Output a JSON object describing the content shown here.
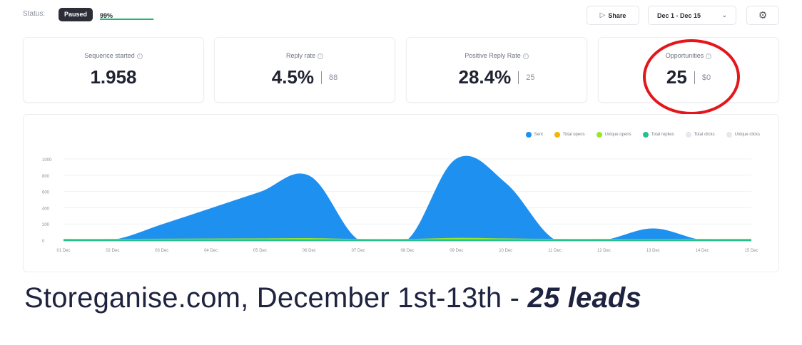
{
  "header": {
    "status_label": "Status:",
    "status_badge": "Paused",
    "progress_text": "99%",
    "progress_value": 0.99,
    "share_label": "Share",
    "date_range": "Dec 1 - Dec 15",
    "accent": "#22b573"
  },
  "metrics": [
    {
      "title": "Sequence started",
      "value": "1.958",
      "sub": ""
    },
    {
      "title": "Reply rate",
      "value": "4.5%",
      "sub": "88"
    },
    {
      "title": "Positive Reply Rate",
      "value": "28.4%",
      "sub": "25"
    },
    {
      "title": "Opportunities",
      "value": "25",
      "sub": "$0"
    }
  ],
  "legend": [
    {
      "name": "Sent",
      "color": "#1e90f0"
    },
    {
      "name": "Total opens",
      "color": "#f5b400"
    },
    {
      "name": "Unique opens",
      "color": "#9ae62e"
    },
    {
      "name": "Total replies",
      "color": "#22c28a"
    },
    {
      "name": "Total clicks",
      "color": "#e6e8ec"
    },
    {
      "name": "Unique clicks",
      "color": "#e6e8ec"
    }
  ],
  "caption": {
    "text": "Storeganise.com, December 1st-13th - ",
    "bold": "25 leads"
  },
  "chart_data": {
    "type": "area",
    "x": [
      "01 Dec",
      "02 Dec",
      "03 Dec",
      "04 Dec",
      "05 Dec",
      "06 Dec",
      "07 Dec",
      "08 Dec",
      "09 Dec",
      "10 Dec",
      "11 Dec",
      "12 Dec",
      "13 Dec",
      "14 Dec",
      "15 Dec"
    ],
    "ylim": [
      0,
      1000
    ],
    "yticks": [
      "0",
      "200",
      "400",
      "600",
      "800",
      "1000"
    ],
    "grid": true,
    "legend_position": "top-right",
    "series": [
      {
        "name": "Sent",
        "color": "#1e90f0",
        "values": [
          0,
          0,
          190,
          390,
          590,
          790,
          0,
          0,
          1000,
          700,
          0,
          0,
          140,
          0,
          0
        ]
      },
      {
        "name": "Total opens",
        "color": "#f5b400",
        "values": [
          0,
          0,
          0,
          0,
          0,
          0,
          0,
          0,
          0,
          0,
          0,
          0,
          0,
          0,
          0
        ]
      },
      {
        "name": "Unique opens",
        "color": "#9ae62e",
        "values": [
          5,
          5,
          8,
          10,
          12,
          15,
          5,
          5,
          18,
          12,
          5,
          5,
          6,
          5,
          5
        ]
      },
      {
        "name": "Total replies",
        "color": "#22c28a",
        "values": [
          0,
          0,
          0,
          0,
          0,
          0,
          0,
          0,
          0,
          0,
          0,
          0,
          0,
          0,
          0
        ]
      }
    ]
  }
}
